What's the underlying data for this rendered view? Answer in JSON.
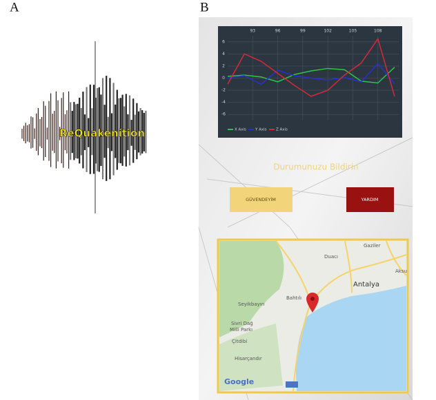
{
  "labels": {
    "a": "A",
    "b": "B"
  },
  "logo": {
    "text": "ReQuakenition"
  },
  "screen": {
    "chart": {
      "type": "line",
      "x": [
        90,
        92,
        94,
        96,
        98,
        100,
        102,
        104,
        106,
        108,
        110
      ],
      "xlim": [
        90,
        110.5
      ],
      "ylim": [
        -7,
        7
      ],
      "xticks": [
        93,
        96,
        99,
        102,
        105,
        108
      ],
      "yticks": [
        6,
        4,
        2,
        0,
        -2,
        -4,
        -6
      ],
      "series": [
        {
          "name": "X Axis",
          "color": "#2fc44a",
          "values": [
            0.3,
            0.5,
            0.2,
            -0.6,
            0.6,
            1.2,
            1.6,
            1.4,
            -0.5,
            -0.8,
            1.8
          ]
        },
        {
          "name": "Y Axis",
          "color": "#2a2fd0",
          "values": [
            0,
            0.4,
            -1,
            1.3,
            0.4,
            0,
            -0.3,
            0.1,
            -0.6,
            2.4,
            -0.9
          ]
        },
        {
          "name": "Z Axis",
          "color": "#d42a3a",
          "values": [
            -1,
            4,
            2.8,
            0.8,
            -1.2,
            -3,
            -2,
            0.5,
            2.5,
            6.5,
            -3
          ]
        }
      ]
    },
    "status_title": "Durumunuzu Bildirin",
    "buttons": [
      "GÜVENDEYİM",
      "YARDIM"
    ],
    "map": {
      "places": [
        "Gaziler",
        "Aksu",
        "Duacı",
        "Antalya",
        "Bahtılı",
        "Seyikbayırı",
        "Sivri Dağ",
        "Milli Parkı",
        "Çitdibi",
        "Hisarçandır"
      ],
      "attribution": "Google"
    }
  }
}
